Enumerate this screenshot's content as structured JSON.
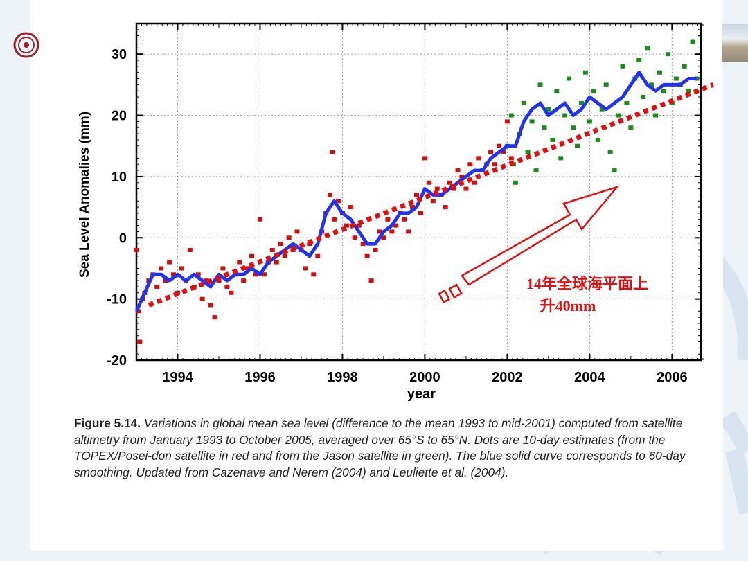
{
  "slide": {
    "accent": "#c0d4e6"
  },
  "chart_data": {
    "type": "scatter",
    "xlabel": "year",
    "ylabel": "Sea Level Anomalies (mm)",
    "xlim": [
      1993,
      2006.7
    ],
    "ylim": [
      -20,
      35
    ],
    "xticks": [
      1994,
      1996,
      1998,
      2000,
      2002,
      2004,
      2006
    ],
    "yticks": [
      -20,
      -10,
      0,
      10,
      20,
      30
    ],
    "grid": true,
    "series": [
      {
        "name": "TOPEX/Poseidon",
        "kind": "scatter",
        "color": "#cc1111",
        "points": [
          [
            1993.0,
            -2
          ],
          [
            1993.05,
            -12
          ],
          [
            1993.08,
            -17
          ],
          [
            1993.15,
            -10
          ],
          [
            1993.2,
            -9
          ],
          [
            1993.3,
            -7
          ],
          [
            1993.4,
            -6
          ],
          [
            1993.5,
            -8
          ],
          [
            1993.6,
            -5
          ],
          [
            1993.7,
            -7
          ],
          [
            1993.8,
            -4
          ],
          [
            1993.9,
            -6
          ],
          [
            1994.0,
            -9
          ],
          [
            1994.1,
            -5
          ],
          [
            1994.2,
            -7
          ],
          [
            1994.3,
            -2
          ],
          [
            1994.4,
            -8
          ],
          [
            1994.5,
            -6
          ],
          [
            1994.6,
            -10
          ],
          [
            1994.7,
            -7
          ],
          [
            1994.8,
            -11
          ],
          [
            1994.9,
            -13
          ],
          [
            1995.0,
            -7
          ],
          [
            1995.1,
            -5
          ],
          [
            1995.2,
            -8
          ],
          [
            1995.3,
            -9
          ],
          [
            1995.4,
            -6
          ],
          [
            1995.5,
            -4
          ],
          [
            1995.6,
            -7
          ],
          [
            1995.7,
            -5
          ],
          [
            1995.8,
            -3
          ],
          [
            1995.9,
            -6
          ],
          [
            1996.0,
            3
          ],
          [
            1996.1,
            -6
          ],
          [
            1996.2,
            -4
          ],
          [
            1996.3,
            -2
          ],
          [
            1996.4,
            -4
          ],
          [
            1996.5,
            -1
          ],
          [
            1996.6,
            -3
          ],
          [
            1996.7,
            0
          ],
          [
            1996.8,
            -2
          ],
          [
            1996.9,
            1
          ],
          [
            1997.0,
            -2
          ],
          [
            1997.1,
            -5
          ],
          [
            1997.2,
            -1
          ],
          [
            1997.3,
            -6
          ],
          [
            1997.4,
            -3
          ],
          [
            1997.5,
            1
          ],
          [
            1997.6,
            4
          ],
          [
            1997.7,
            7
          ],
          [
            1997.75,
            14
          ],
          [
            1997.8,
            3
          ],
          [
            1997.9,
            6
          ],
          [
            1998.0,
            4
          ],
          [
            1998.1,
            2
          ],
          [
            1998.2,
            5
          ],
          [
            1998.3,
            0
          ],
          [
            1998.4,
            2
          ],
          [
            1998.5,
            -1
          ],
          [
            1998.6,
            -3
          ],
          [
            1998.7,
            -7
          ],
          [
            1998.8,
            -2
          ],
          [
            1998.9,
            1
          ],
          [
            1999.0,
            0
          ],
          [
            1999.1,
            3
          ],
          [
            1999.2,
            1
          ],
          [
            1999.3,
            2
          ],
          [
            1999.4,
            4
          ],
          [
            1999.5,
            3
          ],
          [
            1999.6,
            1
          ],
          [
            1999.7,
            5
          ],
          [
            1999.8,
            7
          ],
          [
            1999.9,
            4
          ],
          [
            2000.0,
            13
          ],
          [
            2000.1,
            9
          ],
          [
            2000.2,
            6
          ],
          [
            2000.3,
            8
          ],
          [
            2000.4,
            7
          ],
          [
            2000.5,
            5
          ],
          [
            2000.6,
            9
          ],
          [
            2000.7,
            8
          ],
          [
            2000.8,
            11
          ],
          [
            2000.9,
            10
          ],
          [
            2001.0,
            8
          ],
          [
            2001.1,
            12
          ],
          [
            2001.2,
            9
          ],
          [
            2001.3,
            13
          ],
          [
            2001.4,
            11
          ],
          [
            2001.5,
            12
          ],
          [
            2001.6,
            14
          ],
          [
            2001.7,
            12
          ],
          [
            2001.8,
            15
          ],
          [
            2001.9,
            14
          ],
          [
            2002.0,
            19
          ],
          [
            2002.1,
            13
          ]
        ]
      },
      {
        "name": "Jason",
        "kind": "scatter",
        "color": "#1d8a1d",
        "points": [
          [
            2002.0,
            15
          ],
          [
            2002.1,
            20
          ],
          [
            2002.15,
            12
          ],
          [
            2002.2,
            9
          ],
          [
            2002.3,
            17
          ],
          [
            2002.4,
            22
          ],
          [
            2002.5,
            14
          ],
          [
            2002.6,
            19
          ],
          [
            2002.7,
            11
          ],
          [
            2002.8,
            25
          ],
          [
            2002.9,
            18
          ],
          [
            2003.0,
            21
          ],
          [
            2003.1,
            16
          ],
          [
            2003.2,
            24
          ],
          [
            2003.3,
            13
          ],
          [
            2003.4,
            20
          ],
          [
            2003.5,
            26
          ],
          [
            2003.6,
            18
          ],
          [
            2003.7,
            15
          ],
          [
            2003.8,
            22
          ],
          [
            2003.9,
            27
          ],
          [
            2004.0,
            19
          ],
          [
            2004.1,
            24
          ],
          [
            2004.2,
            16
          ],
          [
            2004.3,
            21
          ],
          [
            2004.4,
            25
          ],
          [
            2004.5,
            14
          ],
          [
            2004.6,
            11
          ],
          [
            2004.7,
            20
          ],
          [
            2004.8,
            28
          ],
          [
            2004.9,
            22
          ],
          [
            2005.0,
            18
          ],
          [
            2005.1,
            26
          ],
          [
            2005.2,
            29
          ],
          [
            2005.3,
            23
          ],
          [
            2005.4,
            31
          ],
          [
            2005.5,
            25
          ],
          [
            2005.6,
            20
          ],
          [
            2005.7,
            27
          ],
          [
            2005.8,
            24
          ],
          [
            2005.9,
            30
          ],
          [
            2006.0,
            22
          ],
          [
            2006.1,
            26
          ],
          [
            2006.2,
            25
          ],
          [
            2006.3,
            28
          ],
          [
            2006.4,
            24
          ],
          [
            2006.5,
            32
          ],
          [
            2006.6,
            26
          ]
        ]
      },
      {
        "name": "60-day smoothing",
        "kind": "line",
        "color": "#2233ee",
        "points": [
          [
            1993.0,
            -12
          ],
          [
            1993.2,
            -9
          ],
          [
            1993.4,
            -6
          ],
          [
            1993.6,
            -6
          ],
          [
            1993.8,
            -7
          ],
          [
            1994.0,
            -6
          ],
          [
            1994.2,
            -7
          ],
          [
            1994.4,
            -6
          ],
          [
            1994.6,
            -7
          ],
          [
            1994.8,
            -8
          ],
          [
            1995.0,
            -6
          ],
          [
            1995.2,
            -7
          ],
          [
            1995.4,
            -6
          ],
          [
            1995.6,
            -6
          ],
          [
            1995.8,
            -5
          ],
          [
            1996.0,
            -6
          ],
          [
            1996.2,
            -4
          ],
          [
            1996.4,
            -3
          ],
          [
            1996.6,
            -2
          ],
          [
            1996.8,
            -1
          ],
          [
            1997.0,
            -2
          ],
          [
            1997.2,
            -3
          ],
          [
            1997.4,
            -1
          ],
          [
            1997.6,
            4
          ],
          [
            1997.8,
            6
          ],
          [
            1998.0,
            4
          ],
          [
            1998.2,
            3
          ],
          [
            1998.4,
            1
          ],
          [
            1998.6,
            -1
          ],
          [
            1998.8,
            -1
          ],
          [
            1999.0,
            1
          ],
          [
            1999.2,
            2
          ],
          [
            1999.4,
            4
          ],
          [
            1999.6,
            4
          ],
          [
            1999.8,
            5
          ],
          [
            2000.0,
            8
          ],
          [
            2000.2,
            7
          ],
          [
            2000.4,
            7
          ],
          [
            2000.6,
            8
          ],
          [
            2000.8,
            9
          ],
          [
            2001.0,
            10
          ],
          [
            2001.2,
            11
          ],
          [
            2001.4,
            11
          ],
          [
            2001.6,
            13
          ],
          [
            2001.8,
            14
          ],
          [
            2002.0,
            15
          ],
          [
            2002.2,
            15
          ],
          [
            2002.4,
            19
          ],
          [
            2002.6,
            21
          ],
          [
            2002.8,
            22
          ],
          [
            2003.0,
            20
          ],
          [
            2003.2,
            21
          ],
          [
            2003.4,
            22
          ],
          [
            2003.6,
            20
          ],
          [
            2003.8,
            21
          ],
          [
            2004.0,
            23
          ],
          [
            2004.2,
            22
          ],
          [
            2004.4,
            21
          ],
          [
            2004.6,
            22
          ],
          [
            2004.8,
            23
          ],
          [
            2005.0,
            25
          ],
          [
            2005.2,
            27
          ],
          [
            2005.4,
            25
          ],
          [
            2005.6,
            24
          ],
          [
            2005.8,
            25
          ],
          [
            2006.0,
            25
          ],
          [
            2006.2,
            25
          ],
          [
            2006.4,
            26
          ],
          [
            2006.6,
            26
          ]
        ]
      },
      {
        "name": "trend",
        "kind": "dotted-line",
        "color": "#dd1111",
        "points": [
          [
            1993.3,
            -11
          ],
          [
            2007.0,
            25
          ]
        ]
      }
    ],
    "annotations": [
      {
        "text_line1": "14年全球海平面上",
        "text_line2": "升40mm",
        "color": "#dd1111"
      }
    ]
  },
  "caption": {
    "label": "Figure 5.14.",
    "text": "Variations in global mean sea level (difference to the mean 1993 to mid-2001) computed from satellite altimetry from January 1993 to October 2005, averaged over 65°S to 65°N. Dots are 10-day estimates (from the TOPEX/Posei-don satellite in red and from the Jason satellite in green). The blue solid curve corresponds to 60-day smoothing. Updated from Cazenave and Nerem (2004) and Leuliette et al. (2004)."
  }
}
